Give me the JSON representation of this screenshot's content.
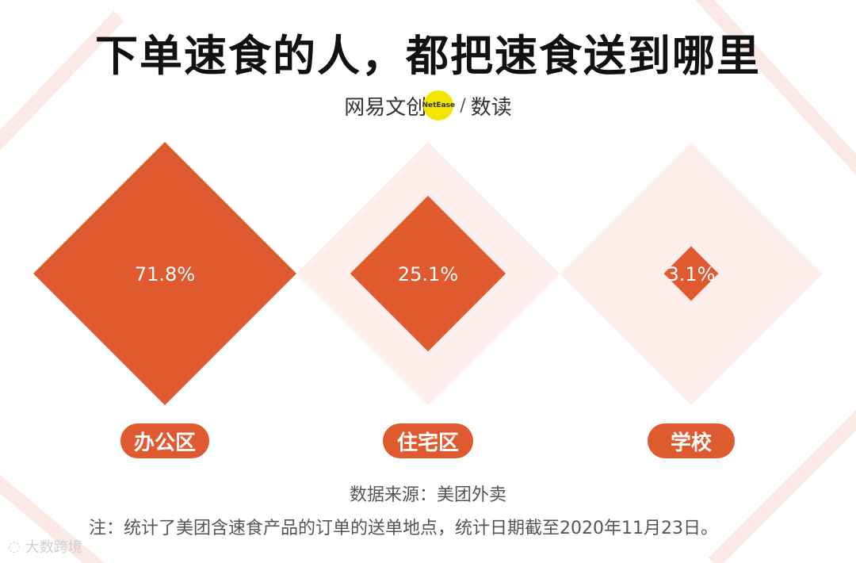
{
  "title": "下单速食的人，都把速食送到哪里",
  "brand": {
    "name": "网易文创",
    "badge": "NetEase",
    "slash": "/",
    "sub": "数读"
  },
  "chart_data": {
    "type": "diamond-area",
    "title": "下单速食的人，都把速食送到哪里",
    "categories": [
      "办公区",
      "住宅区",
      "学校"
    ],
    "values": [
      71.8,
      25.1,
      3.1
    ],
    "value_labels": [
      "71.8%",
      "25.1%",
      "3.1%"
    ],
    "unit": "%"
  },
  "colors": {
    "accent": "#e05a30",
    "background_diamond": "#fdeeec",
    "stripe": "#fbe9e6"
  },
  "source": "数据来源：美团外卖",
  "note": "注：统计了美团含速食产品的订单的送单地点，统计日期截至2020年11月23日。",
  "watermark": {
    "icon": "watermark-logo-icon",
    "text": "大数跨境"
  }
}
